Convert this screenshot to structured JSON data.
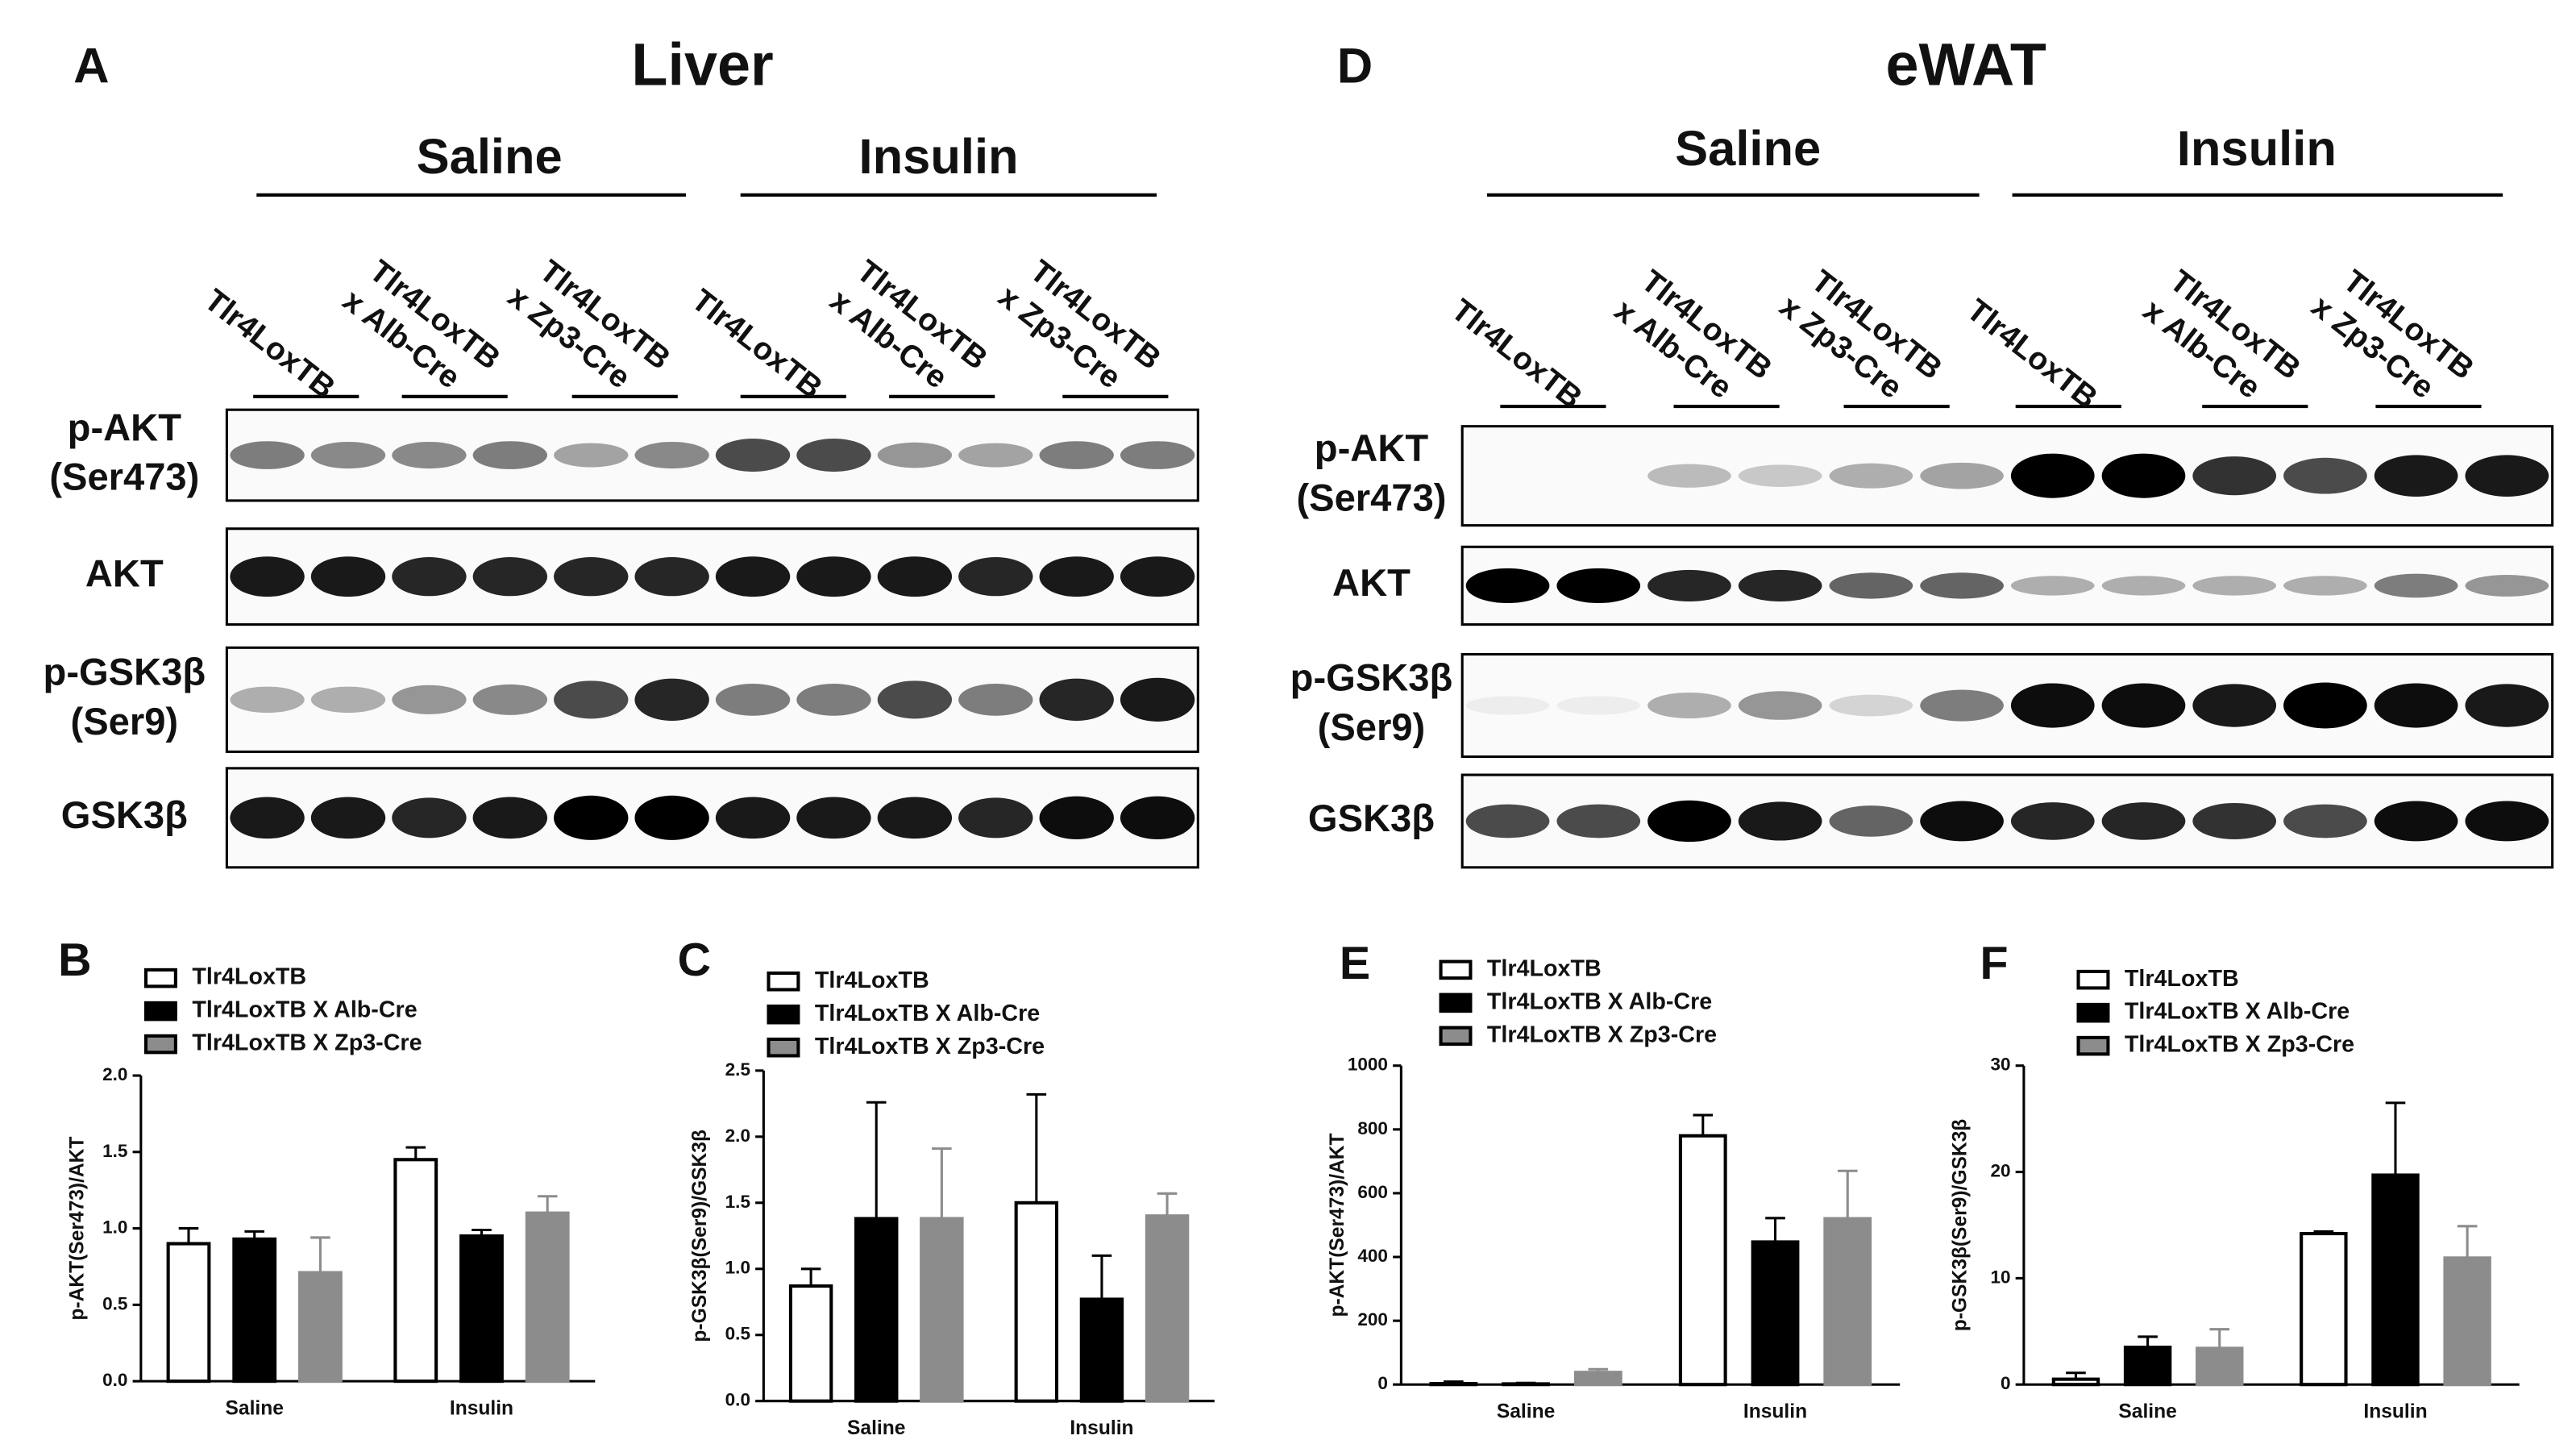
{
  "blots": [
    {
      "letter": "A",
      "tissue": "Liver",
      "treatments": [
        "Saline",
        "Insulin"
      ],
      "lanes": [
        [
          "Tlr4LoxTB"
        ],
        [
          "Tlr4LoxTB",
          "x Alb-Cre"
        ],
        [
          "Tlr4LoxTB",
          "x Zp3-Cre"
        ],
        [
          "Tlr4LoxTB"
        ],
        [
          "Tlr4LoxTB",
          "x Alb-Cre"
        ],
        [
          "Tlr4LoxTB",
          "x Zp3-Cre"
        ]
      ],
      "rows": [
        [
          "p-AKT",
          "(Ser473)"
        ],
        [
          "AKT"
        ],
        [
          "p-GSK3β",
          "(Ser9)"
        ],
        [
          "GSK3β"
        ]
      ]
    },
    {
      "letter": "D",
      "tissue": "eWAT",
      "treatments": [
        "Saline",
        "Insulin"
      ],
      "lanes": [
        [
          "Tlr4LoxTB"
        ],
        [
          "Tlr4LoxTB",
          "x Alb-Cre"
        ],
        [
          "Tlr4LoxTB",
          "x Zp3-Cre"
        ],
        [
          "Tlr4LoxTB"
        ],
        [
          "Tlr4LoxTB",
          "x Alb-Cre"
        ],
        [
          "Tlr4LoxTB",
          "x Zp3-Cre"
        ]
      ],
      "rows": [
        [
          "p-AKT",
          "(Ser473)"
        ],
        [
          "AKT"
        ],
        [
          "p-GSK3β",
          "(Ser9)"
        ],
        [
          "GSK3β"
        ]
      ]
    }
  ],
  "chart_data": [
    {
      "type": "bar",
      "panel": "B",
      "y_label": "p-AKT(Ser473)/AKT",
      "categories": [
        "Saline",
        "Insulin"
      ],
      "ylim": [
        0,
        2.0
      ],
      "yticks": [
        {
          "value": 0,
          "label": "0.0"
        },
        0.5,
        {
          "value": 1,
          "label": "1.0"
        },
        1.5,
        {
          "value": 2,
          "label": "2.0"
        }
      ],
      "series": [
        {
          "name": "Tlr4LoxTB",
          "color": "#ffffff",
          "values": [
            0.9,
            1.45
          ],
          "errors": [
            0.1,
            0.08
          ]
        },
        {
          "name": "Tlr4LoxTB X Alb-Cre",
          "color": "#000000",
          "values": [
            0.93,
            0.95
          ],
          "errors": [
            0.05,
            0.04
          ]
        },
        {
          "name": "Tlr4LoxTB X Zp3-Cre",
          "color": "#8c8c8c",
          "values": [
            0.71,
            1.1
          ],
          "errors": [
            0.23,
            0.11
          ]
        }
      ]
    },
    {
      "type": "bar",
      "panel": "C",
      "y_label": "p-GSK3β(Ser9)/GSK3β",
      "categories": [
        "Saline",
        "Insulin"
      ],
      "ylim": [
        0,
        2.5
      ],
      "yticks": [
        {
          "value": 0,
          "label": "0.0"
        },
        0.5,
        {
          "value": 1,
          "label": "1.0"
        },
        1.5,
        {
          "value": 2,
          "label": "2.0"
        },
        2.5
      ],
      "series": [
        {
          "name": "Tlr4LoxTB",
          "color": "#ffffff",
          "values": [
            0.87,
            1.5
          ],
          "errors": [
            0.13,
            0.82
          ]
        },
        {
          "name": "Tlr4LoxTB X Alb-Cre",
          "color": "#000000",
          "values": [
            1.38,
            0.77
          ],
          "errors": [
            0.88,
            0.33
          ]
        },
        {
          "name": "Tlr4LoxTB X Zp3-Cre",
          "color": "#8c8c8c",
          "values": [
            1.38,
            1.4
          ],
          "errors": [
            0.53,
            0.17
          ]
        }
      ]
    },
    {
      "type": "bar",
      "panel": "E",
      "y_label": "p-AKT(Ser473)/AKT",
      "categories": [
        "Saline",
        "Insulin"
      ],
      "ylim": [
        0,
        1000
      ],
      "yticks": [
        0,
        200,
        400,
        600,
        800,
        1000
      ],
      "series": [
        {
          "name": "Tlr4LoxTB",
          "color": "#ffffff",
          "values": [
            3,
            780
          ],
          "errors": [
            6,
            65
          ]
        },
        {
          "name": "Tlr4LoxTB X Alb-Cre",
          "color": "#000000",
          "values": [
            2,
            447
          ],
          "errors": [
            3,
            75
          ]
        },
        {
          "name": "Tlr4LoxTB X Zp3-Cre",
          "color": "#8c8c8c",
          "values": [
            38,
            520
          ],
          "errors": [
            10,
            150
          ]
        }
      ]
    },
    {
      "type": "bar",
      "panel": "F",
      "y_label": "p-GSK3β(Ser9)/GSK3β",
      "categories": [
        "Saline",
        "Insulin"
      ],
      "ylim": [
        0,
        30
      ],
      "yticks": [
        0,
        10,
        20,
        30
      ],
      "series": [
        {
          "name": "Tlr4LoxTB",
          "color": "#ffffff",
          "values": [
            0.5,
            14.2
          ],
          "errors": [
            0.6,
            0.2
          ]
        },
        {
          "name": "Tlr4LoxTB X Alb-Cre",
          "color": "#000000",
          "values": [
            3.5,
            19.7
          ],
          "errors": [
            1.0,
            6.8
          ]
        },
        {
          "name": "Tlr4LoxTB X Zp3-Cre",
          "color": "#8c8c8c",
          "values": [
            3.4,
            11.9
          ],
          "errors": [
            1.8,
            3.0
          ]
        }
      ]
    }
  ]
}
